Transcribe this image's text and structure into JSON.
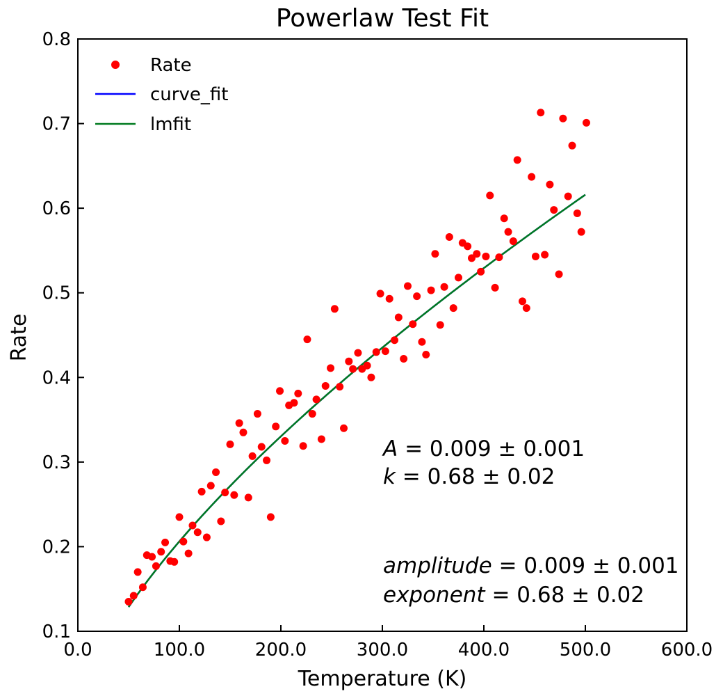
{
  "chart_data": {
    "type": "scatter",
    "title": "Powerlaw Test Fit",
    "xlabel": "Temperature (K)",
    "ylabel": "Rate",
    "xlim": [
      0,
      600
    ],
    "ylim": [
      0.1,
      0.8
    ],
    "xticks": [
      0,
      100,
      200,
      300,
      400,
      500,
      600
    ],
    "xtick_labels": [
      "0.0",
      "100.0",
      "200.0",
      "300.0",
      "400.0",
      "500.0",
      "600.0"
    ],
    "yticks": [
      0.1,
      0.2,
      0.3,
      0.4,
      0.5,
      0.6,
      0.7,
      0.8
    ],
    "ytick_labels": [
      "0.1",
      "0.2",
      "0.3",
      "0.4",
      "0.5",
      "0.6",
      "0.7",
      "0.8"
    ],
    "grid": false,
    "legend_position": "top-left",
    "series": [
      {
        "name": "Rate",
        "kind": "scatter",
        "color": "#ff0000",
        "x": [
          50,
          55,
          59,
          64,
          68,
          73,
          77,
          82,
          86,
          91,
          95,
          100,
          104,
          109,
          113,
          118,
          122,
          127,
          131,
          136,
          141,
          145,
          150,
          154,
          159,
          163,
          168,
          172,
          177,
          181,
          186,
          190,
          195,
          199,
          204,
          208,
          213,
          217,
          222,
          226,
          231,
          235,
          240,
          244,
          249,
          253,
          258,
          262,
          267,
          271,
          276,
          280,
          285,
          289,
          294,
          298,
          303,
          307,
          312,
          316,
          321,
          325,
          330,
          334,
          339,
          343,
          348,
          352,
          357,
          361,
          366,
          370,
          375,
          379,
          384,
          388,
          393,
          397,
          402,
          406,
          411,
          415,
          420,
          424,
          429,
          433,
          438,
          442,
          447,
          451,
          456,
          460,
          465,
          469,
          474,
          478,
          483,
          487,
          492,
          496,
          501
        ],
        "y": [
          0.135,
          0.142,
          0.17,
          0.152,
          0.19,
          0.188,
          0.177,
          0.194,
          0.205,
          0.183,
          0.182,
          0.235,
          0.206,
          0.192,
          0.225,
          0.217,
          0.265,
          0.211,
          0.272,
          0.288,
          0.23,
          0.264,
          0.321,
          0.261,
          0.346,
          0.335,
          0.258,
          0.307,
          0.357,
          0.318,
          0.302,
          0.235,
          0.342,
          0.384,
          0.325,
          0.367,
          0.37,
          0.381,
          0.319,
          0.445,
          0.357,
          0.374,
          0.327,
          0.39,
          0.411,
          0.481,
          0.389,
          0.34,
          0.419,
          0.41,
          0.429,
          0.41,
          0.414,
          0.4,
          0.43,
          0.499,
          0.431,
          0.493,
          0.444,
          0.471,
          0.422,
          0.508,
          0.463,
          0.496,
          0.442,
          0.427,
          0.503,
          0.546,
          0.462,
          0.507,
          0.566,
          0.482,
          0.518,
          0.559,
          0.555,
          0.541,
          0.546,
          0.525,
          0.543,
          0.615,
          0.506,
          0.542,
          0.588,
          0.572,
          0.561,
          0.657,
          0.49,
          0.482,
          0.637,
          0.543,
          0.713,
          0.545,
          0.628,
          0.598,
          0.522,
          0.706,
          0.614,
          0.674,
          0.594,
          0.572,
          0.701
        ]
      },
      {
        "name": "curve_fit",
        "kind": "line",
        "color": "#0000ff",
        "model": {
          "A": 0.009,
          "k": 0.68
        },
        "x_range": [
          50,
          500
        ]
      },
      {
        "name": "lmfit",
        "kind": "line",
        "color": "#007a1f",
        "model": {
          "A": 0.009,
          "k": 0.68
        },
        "x_range": [
          50,
          500
        ]
      }
    ],
    "annotations": [
      {
        "var": "A",
        "rest": " = 0.009 ± 0.001"
      },
      {
        "var": "k",
        "rest": " = 0.68 ± 0.02"
      },
      {
        "var": "amplitude",
        "rest": " = 0.009 ± 0.001"
      },
      {
        "var": "exponent",
        "rest": " = 0.68 ± 0.02"
      }
    ]
  }
}
